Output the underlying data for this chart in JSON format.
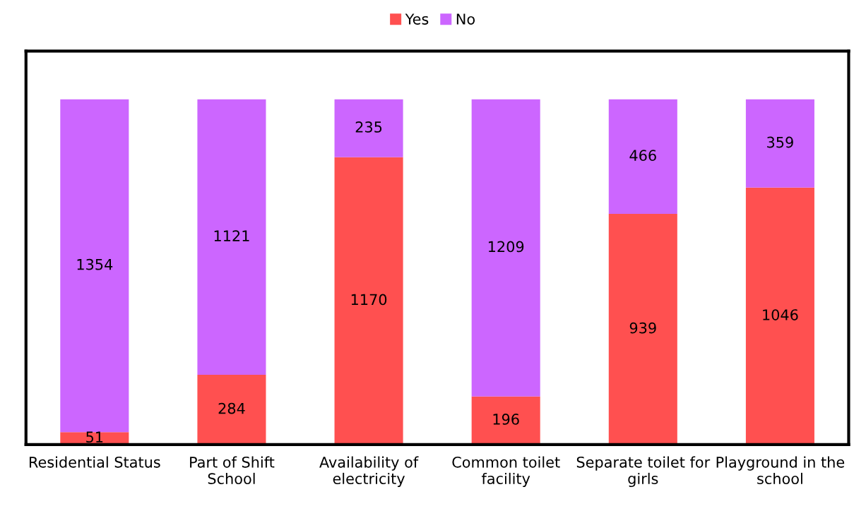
{
  "chart_data": {
    "type": "bar",
    "stacked": true,
    "data_labels": true,
    "legend": "top",
    "tick_labels": "x",
    "categories": [
      "Residential Status",
      "Part of Shift\nSchool",
      "Availability of\nelectricity",
      "Common toilet\nfacility",
      "Separate toilet for\ngirls",
      "Playground in the\nschool"
    ],
    "series": [
      {
        "name": "Yes",
        "color": "#ff5050",
        "values": [
          51,
          284,
          1170,
          196,
          939,
          1046
        ]
      },
      {
        "name": "No",
        "color": "#cc66ff",
        "values": [
          1354,
          1121,
          235,
          1209,
          466,
          359
        ]
      }
    ]
  }
}
